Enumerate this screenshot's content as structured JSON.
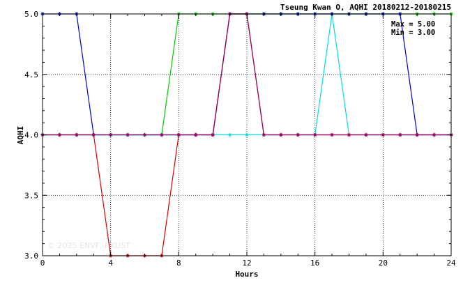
{
  "chart_data": {
    "type": "line",
    "title": "Tseung Kwan O, AQHI 20180212-20180215",
    "xlabel": "Hours",
    "ylabel": "AQHI",
    "xlim": [
      0,
      24
    ],
    "ylim": [
      3.0,
      5.0
    ],
    "x_ticks": [
      0,
      4,
      8,
      12,
      16,
      20,
      24
    ],
    "y_ticks": [
      3.0,
      3.5,
      4.0,
      4.5,
      5.0
    ],
    "grid": "dotted",
    "annotations": {
      "max": "Max = 5.00",
      "min": "Min = 3.00"
    },
    "watermark": "© 2025 ENVF, HKUST",
    "x": [
      0,
      1,
      2,
      3,
      4,
      5,
      6,
      7,
      8,
      9,
      10,
      11,
      12,
      13,
      14,
      15,
      16,
      17,
      18,
      19,
      20,
      21,
      22,
      23,
      24
    ],
    "series": [
      {
        "color": "#00cc00",
        "values": [
          4,
          4,
          4,
          4,
          4,
          4,
          4,
          4,
          5,
          5,
          5,
          5,
          5,
          5,
          5,
          5,
          5,
          5,
          5,
          5,
          5,
          5,
          5,
          5,
          5
        ]
      },
      {
        "color": "#00dddd",
        "values": [
          4,
          4,
          4,
          4,
          4,
          4,
          4,
          4,
          4,
          4,
          4,
          4,
          4,
          4,
          4,
          4,
          4,
          5,
          4,
          4,
          4,
          4,
          4,
          4,
          4
        ]
      },
      {
        "color": "#0000cc",
        "values": [
          5,
          5,
          5,
          4,
          4,
          4,
          4,
          4,
          4,
          4,
          4,
          5,
          5,
          5,
          5,
          5,
          5,
          5,
          5,
          5,
          5,
          5,
          4,
          4,
          4
        ]
      },
      {
        "color": "#dd0000",
        "values": [
          4,
          4,
          4,
          4,
          3,
          3,
          3,
          3,
          4,
          4,
          4,
          5,
          5,
          4,
          4,
          4,
          4,
          4,
          4,
          4,
          4,
          4,
          4,
          4,
          4
        ]
      },
      {
        "color": "#990066",
        "values": [
          4,
          4,
          4,
          4,
          4,
          4,
          4,
          4,
          4,
          4,
          4,
          5,
          5,
          4,
          4,
          4,
          4,
          4,
          4,
          4,
          4,
          4,
          4,
          4,
          4
        ]
      }
    ]
  }
}
